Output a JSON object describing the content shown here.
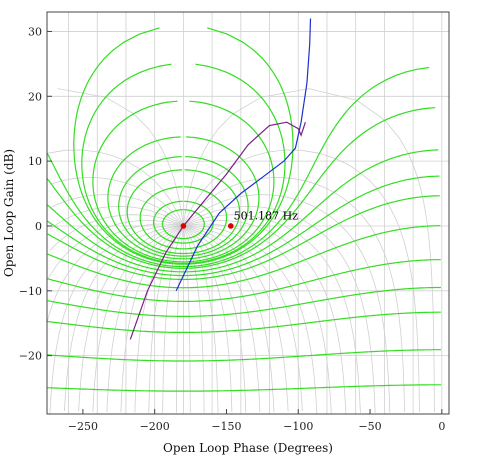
{
  "chart_data": {
    "type": "line",
    "title": "",
    "xlabel": "Open Loop Phase (Degrees)",
    "ylabel": "Open Loop Gain (dB)",
    "xlim": [
      -275,
      5
    ],
    "ylim": [
      -29,
      33
    ],
    "xticks": [
      -250,
      -200,
      -150,
      -100,
      -50,
      0
    ],
    "yticks": [
      -20,
      -10,
      0,
      10,
      20,
      30
    ],
    "grid": true,
    "colors": {
      "background_grid": "#d0d0d0",
      "nichols_grid": "#33dd22",
      "series_blue": "#1f2fd0",
      "series_purple": "#7a1f86",
      "marker": "#dd0000"
    },
    "series": [
      {
        "color": "#1f2fd0",
        "x": [
          -185,
          -170,
          -155,
          -140,
          -125,
          -110,
          -102,
          -98,
          -94,
          -92,
          -91.5
        ],
        "y": [
          -10,
          -3,
          2,
          5,
          7.5,
          10,
          12,
          16,
          22,
          28,
          32
        ]
      },
      {
        "color": "#7a1f86",
        "x": [
          -217,
          -205,
          -192,
          -180,
          -165,
          -150,
          -135,
          -120,
          -108,
          -100,
          -98,
          -95
        ],
        "y": [
          -17.5,
          -10,
          -4,
          0,
          4,
          8,
          12.5,
          15.5,
          16,
          15,
          14,
          16
        ]
      }
    ],
    "markers": [
      {
        "x": -180,
        "y": 0,
        "color": "#dd0000"
      },
      {
        "x": -147,
        "y": 0,
        "color": "#dd0000"
      }
    ],
    "annotations": [
      {
        "text": "501.187 Hz",
        "x": -145,
        "y": 1
      }
    ]
  }
}
